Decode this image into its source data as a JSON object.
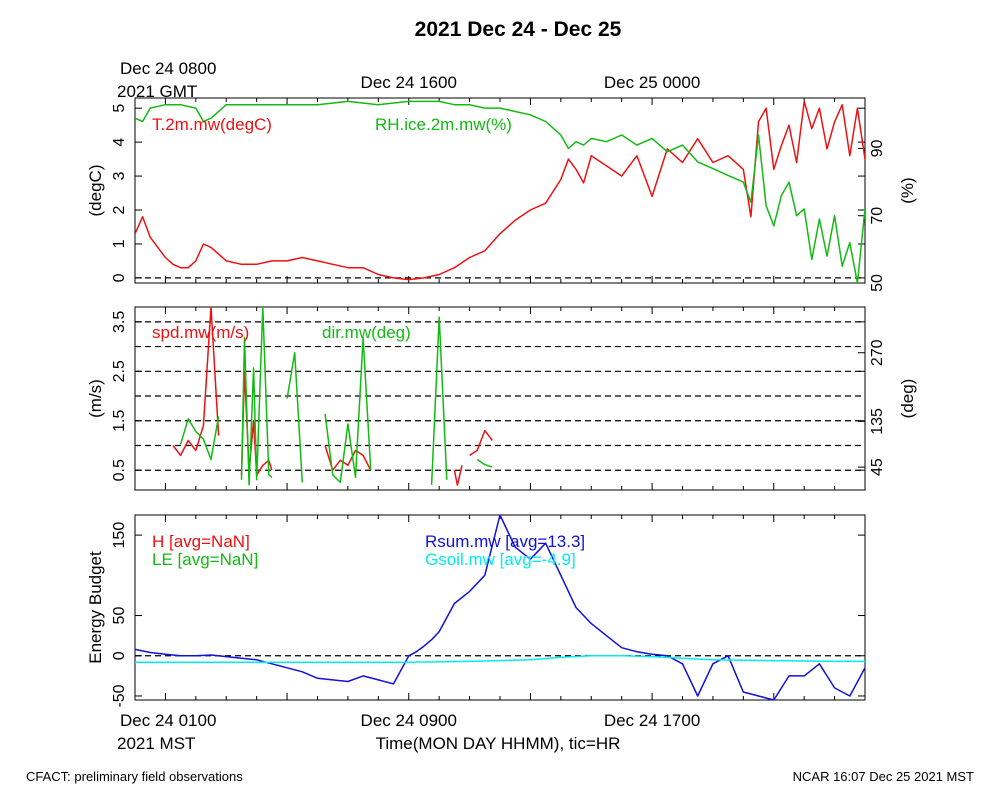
{
  "title": "2021 Dec 24 - Dec 25",
  "footer_left": "CFACT: preliminary field observations",
  "footer_right": "NCAR 16:07 Dec 25 2021 MST",
  "top_axis": {
    "corner_line1": "Dec 24 0800",
    "corner_line2": "2021 GMT",
    "labels": [
      {
        "hour": 0,
        "text": ""
      },
      {
        "hour": 8,
        "text": "Dec 24 1600"
      },
      {
        "hour": 16,
        "text": "Dec 25 0000"
      }
    ]
  },
  "bottom_axis": {
    "corner_line1": "Dec 24 0100",
    "corner_line2": "2021 MST",
    "xlabel": "Time(MON DAY HHMM), tic=HR",
    "labels": [
      {
        "hour": 8,
        "text": "Dec 24 0900"
      },
      {
        "hour": 16,
        "text": "Dec 24 1700"
      }
    ]
  },
  "chart_data": [
    {
      "type": "line",
      "panel": "temperature-humidity",
      "x_unit": "hours since Dec 24 0100 MST",
      "xlim": [
        -1,
        23
      ],
      "ylabel": "(degC)",
      "ylim": [
        -0.15,
        5.3
      ],
      "yticks": [
        0,
        1,
        2,
        3,
        4,
        5
      ],
      "y2label": "(%)",
      "y2lim": [
        50,
        105
      ],
      "y2ticks": [
        50,
        70,
        90
      ],
      "reference_lines": [
        0
      ],
      "series": [
        {
          "name": "T.2m.mw(degC)",
          "axis": "left",
          "color": "#ee1111",
          "x": [
            -1,
            -0.75,
            -0.5,
            -0.25,
            0,
            0.25,
            0.5,
            0.75,
            1,
            1.25,
            1.5,
            1.75,
            2,
            2.5,
            3,
            3.5,
            4,
            4.5,
            5,
            5.5,
            6,
            6.5,
            7,
            7.5,
            8,
            8.5,
            9,
            9.5,
            10,
            10.5,
            11,
            11.5,
            12,
            12.5,
            13,
            13.25,
            13.5,
            13.75,
            14,
            14.5,
            15,
            15.5,
            16,
            16.5,
            17,
            17.5,
            18,
            18.5,
            19,
            19.25,
            19.5,
            19.75,
            20,
            20.25,
            20.5,
            20.75,
            21,
            21.25,
            21.5,
            21.75,
            22,
            22.25,
            22.5,
            22.75,
            23
          ],
          "values": [
            1.3,
            1.8,
            1.2,
            0.9,
            0.6,
            0.4,
            0.3,
            0.3,
            0.5,
            1.0,
            0.9,
            0.7,
            0.5,
            0.4,
            0.4,
            0.5,
            0.5,
            0.6,
            0.5,
            0.4,
            0.3,
            0.3,
            0.1,
            0.0,
            -0.05,
            0.0,
            0.1,
            0.3,
            0.6,
            0.8,
            1.3,
            1.7,
            2.0,
            2.2,
            2.9,
            3.5,
            3.2,
            2.8,
            3.6,
            3.3,
            3.0,
            3.6,
            2.4,
            3.8,
            3.4,
            4.1,
            3.4,
            3.6,
            3.2,
            1.8,
            4.6,
            5.0,
            3.2,
            3.9,
            4.5,
            3.4,
            5.2,
            4.4,
            5.0,
            3.8,
            4.6,
            5.1,
            3.6,
            5.0,
            3.5
          ]
        },
        {
          "name": "RH.ice.2m.mw(%)",
          "axis": "right",
          "color": "#11bb11",
          "x": [
            -1,
            -0.75,
            -0.5,
            0,
            0.5,
            1,
            1.25,
            1.5,
            2,
            3,
            4,
            5,
            6,
            7,
            8,
            9,
            9.5,
            10,
            10.5,
            11,
            11.5,
            12,
            12.5,
            13,
            13.25,
            13.5,
            13.75,
            14,
            14.5,
            15,
            15.5,
            16,
            16.5,
            17,
            17.5,
            18,
            18.5,
            19,
            19.25,
            19.5,
            19.75,
            20,
            20.25,
            20.5,
            20.75,
            21,
            21.25,
            21.5,
            21.75,
            22,
            22.25,
            22.5,
            22.75,
            23
          ],
          "values": [
            99,
            98,
            102,
            103,
            103,
            102,
            98,
            99,
            103,
            103,
            103,
            103,
            104,
            103,
            104,
            104,
            103,
            103,
            102,
            102,
            101,
            100,
            98,
            94,
            90,
            92,
            91,
            93,
            92,
            94,
            91,
            93,
            89,
            91,
            86,
            84,
            82,
            80,
            74,
            94,
            73,
            67,
            76,
            80,
            70,
            72,
            57,
            69,
            58,
            70,
            55,
            62,
            50,
            72
          ]
        }
      ]
    },
    {
      "type": "line",
      "panel": "wind",
      "x_unit": "hours since Dec 24 0100 MST",
      "xlim": [
        -1,
        23
      ],
      "ylabel": "(m/s)",
      "ylim": [
        0.1,
        3.8
      ],
      "yticks": [
        0.5,
        1.5,
        2.5,
        3.5
      ],
      "y2label": "(deg)",
      "y2lim": [
        0,
        360
      ],
      "y2ticks": [
        45,
        135,
        270
      ],
      "reference_lines": [
        0.5,
        1,
        1.5,
        2,
        2.5,
        3,
        3.5
      ],
      "series": [
        {
          "name": "spd.mw(m/s)",
          "axis": "left",
          "color": "#ee1111",
          "segments": [
            {
              "x": [
                0.25,
                0.5,
                0.75,
                1.0,
                1.25,
                1.5,
                1.75
              ],
              "values": [
                1.0,
                0.8,
                1.1,
                0.9,
                1.4,
                3.8,
                1.2
              ]
            },
            {
              "x": [
                2.5,
                2.6,
                2.75,
                2.9,
                3.0,
                3.2,
                3.4,
                3.5
              ],
              "values": [
                0.4,
                2.5,
                0.5,
                1.5,
                0.4,
                0.6,
                0.7,
                0.5
              ]
            },
            {
              "x": [
                5.25,
                5.5,
                5.75,
                6.0,
                6.25,
                6.5,
                6.75
              ],
              "values": [
                1.0,
                0.5,
                0.7,
                0.6,
                0.9,
                0.8,
                0.5
              ]
            },
            {
              "x": [
                9.5,
                9.6,
                9.75
              ],
              "values": [
                0.5,
                0.2,
                0.6
              ]
            },
            {
              "x": [
                10.0,
                10.25,
                10.5,
                10.75
              ],
              "values": [
                0.8,
                0.9,
                1.3,
                1.1
              ]
            }
          ]
        },
        {
          "name": "dir.mw(deg)",
          "axis": "right",
          "color": "#11bb11",
          "segments": [
            {
              "x": [
                0.5,
                0.75,
                1.0,
                1.25,
                1.5,
                1.75
              ],
              "values": [
                90,
                140,
                115,
                100,
                60,
                145
              ]
            },
            {
              "x": [
                2.5,
                2.6,
                2.75,
                2.9,
                3.0,
                3.2,
                3.4,
                3.5
              ],
              "values": [
                20,
                300,
                10,
                240,
                20,
                360,
                30,
                25
              ]
            },
            {
              "x": [
                4.0,
                4.25,
                4.5
              ],
              "values": [
                180,
                270,
                15
              ]
            },
            {
              "x": [
                5.25,
                5.5,
                5.75,
                6.0,
                6.25,
                6.5,
                6.75
              ],
              "values": [
                150,
                30,
                15,
                130,
                25,
                300,
                40
              ]
            },
            {
              "x": [
                8.75,
                9.0,
                9.25
              ],
              "values": [
                10,
                340,
                20
              ]
            },
            {
              "x": [
                10.25,
                10.5,
                10.75
              ],
              "values": [
                60,
                50,
                45
              ]
            }
          ]
        }
      ]
    },
    {
      "type": "line",
      "panel": "energy-budget",
      "x_unit": "hours since Dec 24 0100 MST",
      "xlim": [
        -1,
        23
      ],
      "ylabel": "Energy Budget",
      "ylim": [
        -55,
        175
      ],
      "yticks": [
        -50,
        0,
        50,
        150
      ],
      "reference_lines": [
        0
      ],
      "series": [
        {
          "name": "H [avg=NaN]",
          "color": "#ee1111",
          "x": [],
          "values": []
        },
        {
          "name": "LE [avg=NaN]",
          "color": "#11bb11",
          "x": [],
          "values": []
        },
        {
          "name": "Rsum.mw [avg=13.3]",
          "color": "#1111dd",
          "x": [
            -1,
            -0.5,
            0,
            0.5,
            1,
            1.5,
            2,
            2.5,
            3,
            3.5,
            4,
            4.5,
            5,
            5.5,
            6,
            6.5,
            7,
            7.5,
            8,
            8.25,
            8.5,
            8.75,
            9,
            9.5,
            10,
            10.5,
            11,
            11.5,
            12,
            12.5,
            13,
            13.5,
            14,
            14.5,
            15,
            15.5,
            16,
            16.5,
            17,
            17.5,
            18,
            18.5,
            19,
            19.5,
            20,
            20.5,
            21,
            21.5,
            22,
            22.5,
            23
          ],
          "values": [
            8,
            4,
            2,
            0,
            0,
            1,
            -1,
            -3,
            -5,
            -10,
            -15,
            -20,
            -28,
            -30,
            -32,
            -25,
            -30,
            -35,
            0,
            5,
            12,
            20,
            30,
            65,
            80,
            100,
            175,
            135,
            120,
            140,
            100,
            60,
            40,
            25,
            10,
            5,
            2,
            0,
            -10,
            -50,
            -10,
            0,
            -45,
            -50,
            -55,
            -25,
            -25,
            -10,
            -40,
            -50,
            -15
          ]
        },
        {
          "name": "Gsoil.mw [avg=-4.9]",
          "color": "#00eeee",
          "x": [
            -1,
            0,
            2,
            4,
            6,
            8,
            10,
            12,
            13,
            14,
            15,
            16,
            17,
            18,
            20,
            22,
            23
          ],
          "values": [
            -8,
            -8,
            -8,
            -8,
            -8,
            -8,
            -7,
            -5,
            -2,
            0,
            0,
            -1,
            -3,
            -5,
            -6,
            -7,
            -7
          ]
        }
      ]
    }
  ]
}
